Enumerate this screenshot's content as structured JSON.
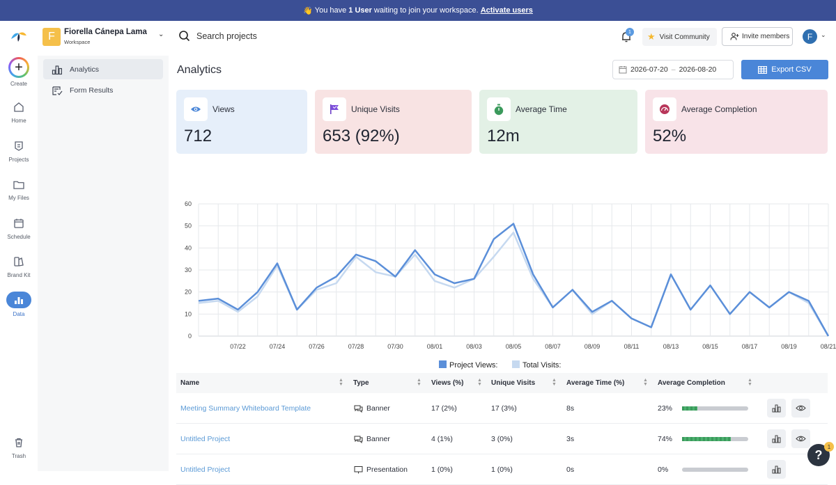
{
  "banner": {
    "prefix": "You have",
    "count": "1 User",
    "suffix": "waiting to join your workspace.",
    "link": "Activate users"
  },
  "workspace": {
    "initial": "F",
    "name": "Fiorella Cánepa Lama",
    "subtitle": "Workspace"
  },
  "search": {
    "placeholder": "Search projects"
  },
  "header": {
    "notification_count": "1",
    "visit_community": "Visit Community",
    "invite_members": "Invite members",
    "avatar_initial": "F"
  },
  "rail": {
    "create": "Create",
    "items": [
      "Home",
      "Projects",
      "My Files",
      "Schedule",
      "Brand Kit",
      "Data"
    ],
    "trash": "Trash"
  },
  "subnav": {
    "items": [
      "Analytics",
      "Form Results"
    ]
  },
  "page": {
    "title": "Analytics",
    "date_start": "2026-07-20",
    "date_sep": "–",
    "date_end": "2026-08-20",
    "export_label": "Export CSV"
  },
  "cards": [
    {
      "label": "Views",
      "value": "712",
      "bg": "#e6effa",
      "icon": "eye-icon"
    },
    {
      "label": "Unique Visits",
      "value": "653 (92%)",
      "bg": "#f8e3e3",
      "icon": "flag-icon"
    },
    {
      "label": "Average Time",
      "value": "12m",
      "bg": "#e3f1e6",
      "icon": "stopwatch-icon"
    },
    {
      "label": "Average Completion",
      "value": "52%",
      "bg": "#f8e3e8",
      "icon": "gauge-icon"
    }
  ],
  "chart_data": {
    "type": "line",
    "x": [
      "07/20",
      "07/21",
      "07/22",
      "07/23",
      "07/24",
      "07/25",
      "07/26",
      "07/27",
      "07/28",
      "07/29",
      "07/30",
      "07/31",
      "08/01",
      "08/02",
      "08/03",
      "08/04",
      "08/05",
      "08/06",
      "08/07",
      "08/08",
      "08/09",
      "08/10",
      "08/11",
      "08/12",
      "08/13",
      "08/14",
      "08/15",
      "08/16",
      "08/17",
      "08/18",
      "08/19",
      "08/20",
      "08/21"
    ],
    "tick_labels": [
      "07/22",
      "07/24",
      "07/26",
      "07/28",
      "07/30",
      "08/01",
      "08/03",
      "08/05",
      "08/07",
      "08/09",
      "08/11",
      "08/13",
      "08/15",
      "08/17",
      "08/19",
      "08/21"
    ],
    "y_ticks": [
      0,
      10,
      20,
      30,
      40,
      50,
      60
    ],
    "ylim": [
      0,
      60
    ],
    "series": [
      {
        "name": "Project Views:",
        "color": "#5b8fd9",
        "values": [
          16,
          17,
          12,
          20,
          33,
          12,
          22,
          27,
          37,
          34,
          27,
          39,
          28,
          24,
          26,
          44,
          51,
          28,
          13,
          21,
          11,
          16,
          8,
          4,
          28,
          12,
          23,
          10,
          20,
          13,
          20,
          16,
          0
        ]
      },
      {
        "name": "Total Visits:",
        "color": "#c6d9f0",
        "values": [
          15,
          16,
          11,
          18,
          32,
          12,
          21,
          24,
          36,
          29,
          27,
          37,
          25,
          22,
          26,
          36,
          47,
          26,
          13,
          21,
          10,
          16,
          8,
          4,
          28,
          12,
          23,
          10,
          20,
          13,
          20,
          15,
          0
        ]
      }
    ],
    "legend_position": "bottom",
    "grid": true
  },
  "table": {
    "columns": [
      "Name",
      "Type",
      "Views (%)",
      "Unique Visits",
      "Average Time (%)",
      "Average Completion"
    ],
    "rows": [
      {
        "name": "Meeting Summary Whiteboard Template",
        "type": "Banner",
        "views": "17 (2%)",
        "unique": "17 (3%)",
        "time": "8s",
        "completion": "23%",
        "completion_value": 0.23
      },
      {
        "name": "Untitled Project",
        "type": "Banner",
        "views": "4 (1%)",
        "unique": "3 (0%)",
        "time": "3s",
        "completion": "74%",
        "completion_value": 0.74
      },
      {
        "name": "Untitled Project",
        "type": "Presentation",
        "views": "1 (0%)",
        "unique": "1 (0%)",
        "time": "0s",
        "completion": "0%",
        "completion_value": 0
      }
    ]
  },
  "help": {
    "label": "?",
    "badge": "1"
  }
}
